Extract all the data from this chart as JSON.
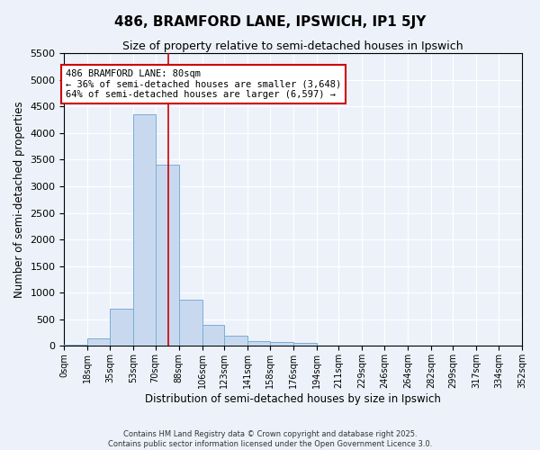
{
  "title": "486, BRAMFORD LANE, IPSWICH, IP1 5JY",
  "subtitle": "Size of property relative to semi-detached houses in Ipswich",
  "xlabel": "Distribution of semi-detached houses by size in Ipswich",
  "ylabel": "Number of semi-detached properties",
  "bin_edges": [
    0,
    18,
    35,
    53,
    70,
    88,
    106,
    123,
    141,
    158,
    176,
    194,
    211,
    229,
    246,
    264,
    282,
    299,
    317,
    334,
    352
  ],
  "bin_labels": [
    "0sqm",
    "18sqm",
    "35sqm",
    "53sqm",
    "70sqm",
    "88sqm",
    "106sqm",
    "123sqm",
    "141sqm",
    "158sqm",
    "176sqm",
    "194sqm",
    "211sqm",
    "229sqm",
    "246sqm",
    "264sqm",
    "282sqm",
    "299sqm",
    "317sqm",
    "334sqm",
    "352sqm"
  ],
  "bar_heights": [
    20,
    150,
    700,
    4350,
    3400,
    870,
    400,
    200,
    100,
    80,
    50,
    0,
    0,
    0,
    0,
    0,
    0,
    0,
    0,
    0
  ],
  "bar_color": "#c8d9ef",
  "bar_edge_color": "#7aaed4",
  "ylim": [
    0,
    5500
  ],
  "yticks": [
    0,
    500,
    1000,
    1500,
    2000,
    2500,
    3000,
    3500,
    4000,
    4500,
    5000,
    5500
  ],
  "property_size": 80,
  "property_line_color": "#cc0000",
  "annotation_text": "486 BRAMFORD LANE: 80sqm\n← 36% of semi-detached houses are smaller (3,648)\n64% of semi-detached houses are larger (6,597) →",
  "annotation_box_color": "#ffffff",
  "annotation_box_edgecolor": "#cc0000",
  "background_color": "#edf2fa",
  "grid_color": "#ffffff",
  "footer_line1": "Contains HM Land Registry data © Crown copyright and database right 2025.",
  "footer_line2": "Contains public sector information licensed under the Open Government Licence 3.0."
}
